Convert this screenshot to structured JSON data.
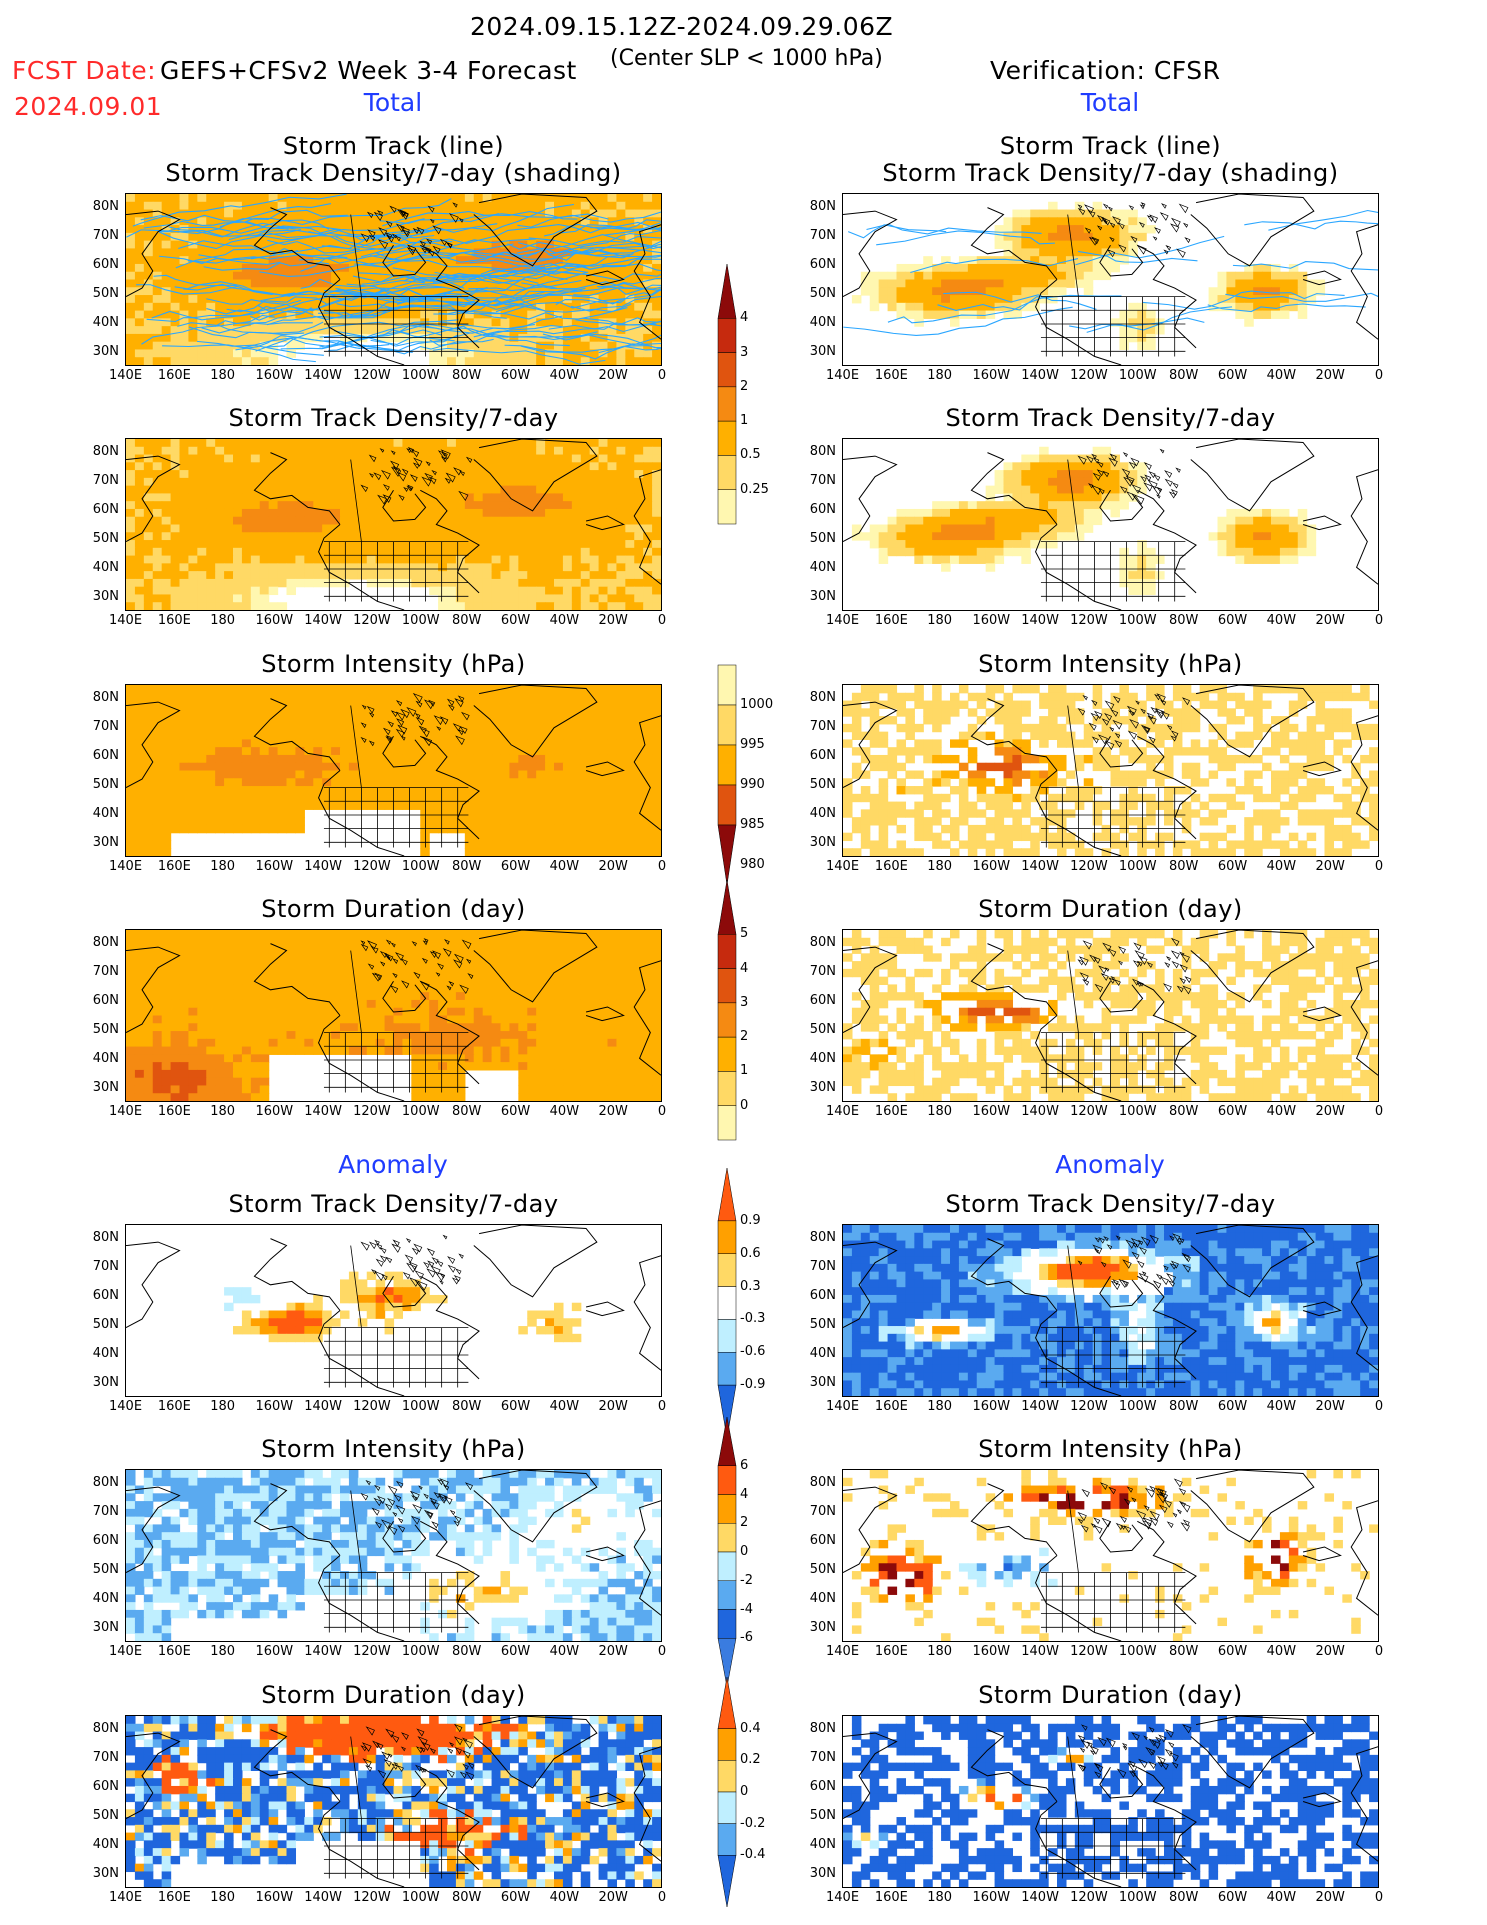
{
  "header": {
    "date_range": "2024.09.15.12Z-2024.09.29.06Z",
    "fcst_label": "FCST Date:",
    "fcst_date": "2024.09.01",
    "model": "GEFS+CFSv2 Week 3-4 Forecast",
    "criterion": "(Center SLP < 1000 hPa)",
    "verification": "Verification: CFSR"
  },
  "sections": {
    "total": "Total",
    "anomaly": "Anomaly"
  },
  "panel_titles": {
    "track_line": "Storm Track (line)",
    "track_density_shading": "Storm Track Density/7-day (shading)",
    "track_density": "Storm Track Density/7-day",
    "intensity": "Storm Intensity (hPa)",
    "duration": "Storm Duration (day)"
  },
  "axes": {
    "lon_ticks": [
      "140E",
      "160E",
      "180",
      "160W",
      "140W",
      "120W",
      "100W",
      "80W",
      "60W",
      "40W",
      "20W",
      "0"
    ],
    "lat_ticks": [
      "80N",
      "70N",
      "60N",
      "50N",
      "40N",
      "30N"
    ]
  },
  "colorbars": {
    "density_total": [
      "4",
      "3",
      "2",
      "1",
      "0.5",
      "0.25"
    ],
    "intensity_total": [
      "1000",
      "995",
      "990",
      "985",
      "980"
    ],
    "duration_total": [
      "5",
      "4",
      "3",
      "2",
      "1",
      "0"
    ],
    "density_anom": [
      "0.9",
      "0.6",
      "0.3",
      "-0.3",
      "-0.6",
      "-0.9"
    ],
    "intensity_anom": [
      "6",
      "4",
      "2",
      "0",
      "-2",
      "-4",
      "-6"
    ],
    "duration_anom": [
      "0.4",
      "0.2",
      "0",
      "-0.2",
      "-0.4"
    ]
  },
  "colors": {
    "total_scale": [
      "#fff7b0",
      "#ffd965",
      "#ffb000",
      "#f58a12",
      "#e0540f",
      "#c62a0e",
      "#8c0a0a"
    ],
    "anom_warm": [
      "#ffd965",
      "#ffa000",
      "#ff5a10"
    ],
    "anom_cool": [
      "#bfefff",
      "#5aaaf0",
      "#1f66dd"
    ],
    "track_line": "#2aa6ff"
  },
  "chart_data": {
    "type": "heatmap",
    "title": "2024.09.15.12Z-2024.09.29.06Z",
    "layout": "7 rows x 2 columns; left = GEFS+CFSv2 forecast, right = CFSR verification",
    "panels": [
      {
        "row": 1,
        "forecast": "Storm Track (line) / Storm Track Density/7-day (shading)",
        "verification": "Storm Track (line) / Storm Track Density/7-day (shading)",
        "section": "Total"
      },
      {
        "row": 2,
        "forecast": "Storm Track Density/7-day",
        "verification": "Storm Track Density/7-day",
        "section": "Total"
      },
      {
        "row": 3,
        "forecast": "Storm Intensity (hPa)",
        "verification": "Storm Intensity (hPa)",
        "section": "Total"
      },
      {
        "row": 4,
        "forecast": "Storm Duration (day)",
        "verification": "Storm Duration (day)",
        "section": "Total"
      },
      {
        "row": 5,
        "forecast": "Storm Track Density/7-day",
        "verification": "Storm Track Density/7-day",
        "section": "Anomaly"
      },
      {
        "row": 6,
        "forecast": "Storm Intensity (hPa)",
        "verification": "Storm Intensity (hPa)",
        "section": "Anomaly"
      },
      {
        "row": 7,
        "forecast": "Storm Duration (day)",
        "verification": "Storm Duration (day)",
        "section": "Anomaly"
      }
    ],
    "xlim": [
      "140E",
      "0"
    ],
    "ylim": [
      "25N",
      "85N"
    ]
  }
}
